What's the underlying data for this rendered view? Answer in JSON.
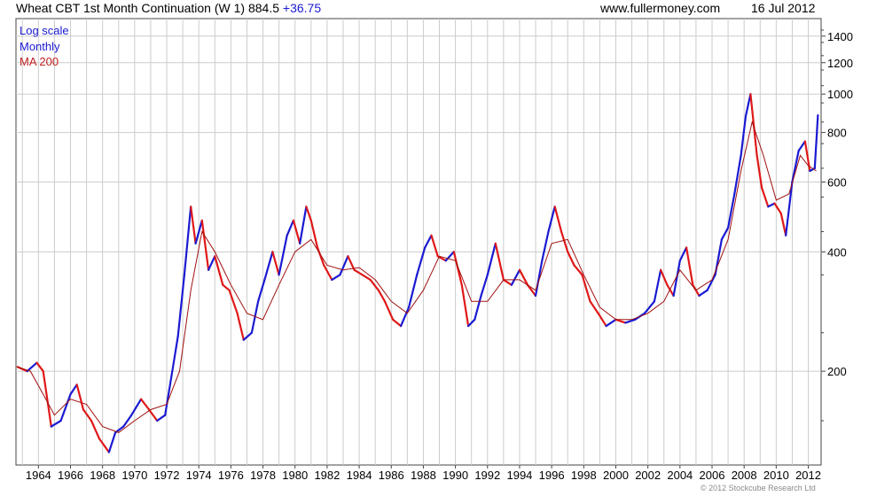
{
  "header": {
    "title_main": "Wheat CBT 1st Month Continuation (W 1) 884.5",
    "title_change": "+36.75",
    "site": "www.fullermoney.com",
    "date": "16 Jul 2012"
  },
  "legend": {
    "scale": "Log scale",
    "period": "Monthly",
    "ma": "MA 200"
  },
  "footer": {
    "copyright": "© 2012 Stockcube Research Ltd"
  },
  "colors": {
    "up": "#1a1ad2",
    "down": "#e01818",
    "ma": "#a01010",
    "grid": "#cccccc"
  },
  "chart_data": {
    "type": "line",
    "title": "Wheat CBT 1st Month Continuation (W 1) 884.5 +36.75",
    "yscale": "log",
    "ylim": [
      116,
      1550
    ],
    "xlim": [
      1962.6,
      2012.8
    ],
    "y_ticks": [
      200,
      400,
      600,
      800,
      1000,
      1200,
      1400
    ],
    "x_ticks": [
      1964,
      1966,
      1968,
      1970,
      1972,
      1974,
      1976,
      1978,
      1980,
      1982,
      1984,
      1986,
      1988,
      1990,
      1992,
      1994,
      1996,
      1998,
      2000,
      2002,
      2004,
      2006,
      2008,
      2010,
      2012
    ],
    "grid": true,
    "legend_position": "top-left",
    "series": [
      {
        "name": "Monthly",
        "x": [
          1962.7,
          1963.3,
          1963.9,
          1964.3,
          1964.8,
          1965.4,
          1966.0,
          1966.4,
          1966.8,
          1967.3,
          1967.8,
          1968.4,
          1968.8,
          1969.3,
          1969.8,
          1970.4,
          1970.9,
          1971.4,
          1971.9,
          1972.3,
          1972.7,
          1973.1,
          1973.5,
          1973.8,
          1974.2,
          1974.6,
          1975.0,
          1975.5,
          1975.9,
          1976.4,
          1976.8,
          1977.3,
          1977.7,
          1978.1,
          1978.6,
          1979.0,
          1979.5,
          1979.9,
          1980.3,
          1980.7,
          1981.0,
          1981.4,
          1981.8,
          1982.3,
          1982.8,
          1983.3,
          1983.7,
          1984.2,
          1984.7,
          1985.2,
          1985.6,
          1986.1,
          1986.6,
          1987.1,
          1987.6,
          1988.1,
          1988.5,
          1988.9,
          1989.4,
          1989.9,
          1990.4,
          1990.8,
          1991.2,
          1991.6,
          1992.0,
          1992.5,
          1993.0,
          1993.5,
          1994.0,
          1994.5,
          1995.0,
          1995.4,
          1995.8,
          1996.2,
          1996.6,
          1997.0,
          1997.4,
          1997.9,
          1998.4,
          1998.9,
          1999.4,
          2000.0,
          2000.6,
          2001.2,
          2001.8,
          2002.4,
          2002.8,
          2003.2,
          2003.6,
          2004.0,
          2004.4,
          2004.8,
          2005.2,
          2005.7,
          2006.2,
          2006.6,
          2007.0,
          2007.4,
          2007.8,
          2008.1,
          2008.4,
          2008.8,
          2009.1,
          2009.5,
          2009.9,
          2010.3,
          2010.6,
          2011.0,
          2011.4,
          2011.8,
          2012.1,
          2012.4,
          2012.6
        ],
        "values": [
          205,
          200,
          210,
          200,
          145,
          150,
          175,
          185,
          160,
          150,
          135,
          125,
          140,
          145,
          155,
          170,
          160,
          150,
          155,
          195,
          245,
          350,
          520,
          420,
          480,
          360,
          390,
          330,
          320,
          280,
          240,
          250,
          300,
          340,
          400,
          350,
          440,
          480,
          420,
          520,
          480,
          410,
          370,
          340,
          350,
          390,
          360,
          350,
          340,
          320,
          300,
          270,
          260,
          290,
          350,
          410,
          440,
          390,
          380,
          400,
          330,
          260,
          270,
          310,
          350,
          420,
          340,
          330,
          360,
          330,
          310,
          380,
          450,
          520,
          450,
          400,
          370,
          350,
          300,
          280,
          260,
          270,
          265,
          270,
          280,
          300,
          360,
          330,
          310,
          380,
          410,
          330,
          310,
          320,
          350,
          430,
          460,
          560,
          700,
          880,
          1000,
          700,
          580,
          520,
          530,
          500,
          440,
          600,
          720,
          760,
          640,
          650,
          884.5
        ]
      },
      {
        "name": "MA 200",
        "x": [
          1962.7,
          1963.5,
          1964.3,
          1965.0,
          1966.0,
          1967.0,
          1968.0,
          1969.0,
          1970.0,
          1971.0,
          1972.0,
          1972.8,
          1973.5,
          1974.2,
          1975.0,
          1976.0,
          1977.0,
          1978.0,
          1979.0,
          1980.0,
          1981.0,
          1982.0,
          1983.0,
          1984.0,
          1985.0,
          1986.0,
          1987.0,
          1988.0,
          1989.0,
          1990.0,
          1991.0,
          1992.0,
          1993.0,
          1994.0,
          1995.0,
          1996.0,
          1997.0,
          1998.0,
          1999.0,
          2000.0,
          2001.0,
          2002.0,
          2003.0,
          2004.0,
          2005.0,
          2006.0,
          2007.0,
          2007.8,
          2008.5,
          2009.2,
          2010.0,
          2010.8,
          2011.5,
          2012.0,
          2012.5
        ],
        "values": [
          205,
          200,
          175,
          155,
          170,
          165,
          145,
          140,
          150,
          160,
          165,
          200,
          320,
          450,
          400,
          330,
          280,
          270,
          330,
          400,
          430,
          370,
          360,
          365,
          340,
          300,
          280,
          320,
          390,
          380,
          300,
          300,
          340,
          340,
          320,
          420,
          430,
          350,
          290,
          270,
          270,
          280,
          300,
          360,
          320,
          340,
          430,
          640,
          850,
          700,
          540,
          560,
          700,
          660,
          640
        ]
      }
    ]
  }
}
